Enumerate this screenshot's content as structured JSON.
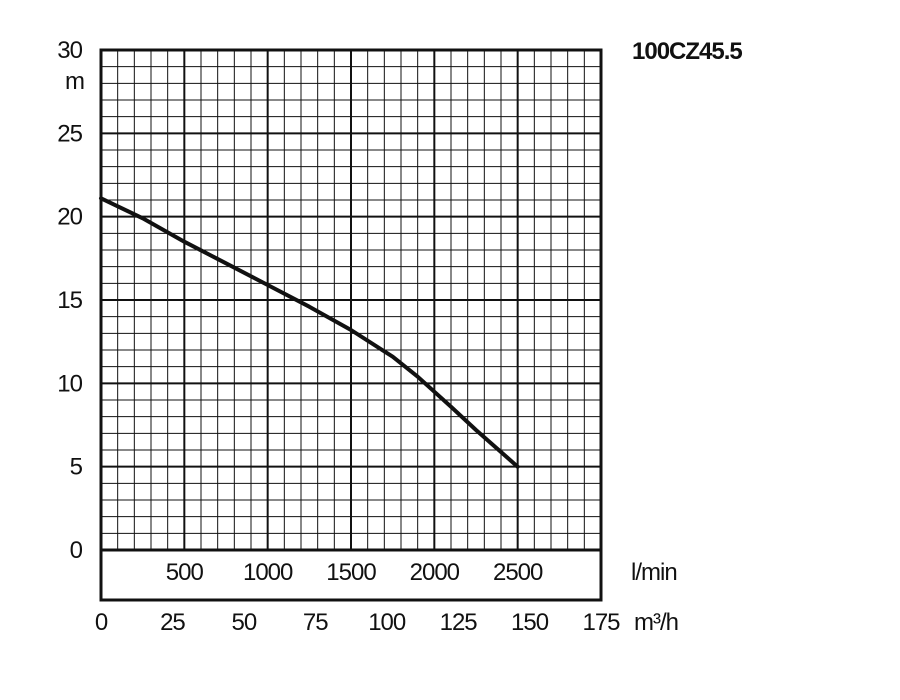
{
  "chart_data": {
    "type": "line",
    "title": "100CZ45.5",
    "xlabel": "l/min",
    "x2label": "m³/h",
    "ylabel": "m",
    "xlim": [
      0,
      3000
    ],
    "x2lim": [
      0,
      175
    ],
    "ylim": [
      0,
      30
    ],
    "x_ticks": [
      500,
      1000,
      1500,
      2000,
      2500
    ],
    "x2_ticks": [
      0,
      25,
      50,
      75,
      100,
      125,
      150,
      175
    ],
    "y_ticks": [
      0,
      5,
      10,
      15,
      20,
      25,
      30
    ],
    "grid": true,
    "series": [
      {
        "x": [
          0,
          250,
          500,
          750,
          1000,
          1250,
          1500,
          1750,
          1900,
          2000,
          2100,
          2250,
          2500
        ],
        "y": [
          21.1,
          19.9,
          18.5,
          17.2,
          15.9,
          14.6,
          13.2,
          11.6,
          10.4,
          9.5,
          8.6,
          7.2,
          5.0
        ]
      }
    ]
  }
}
